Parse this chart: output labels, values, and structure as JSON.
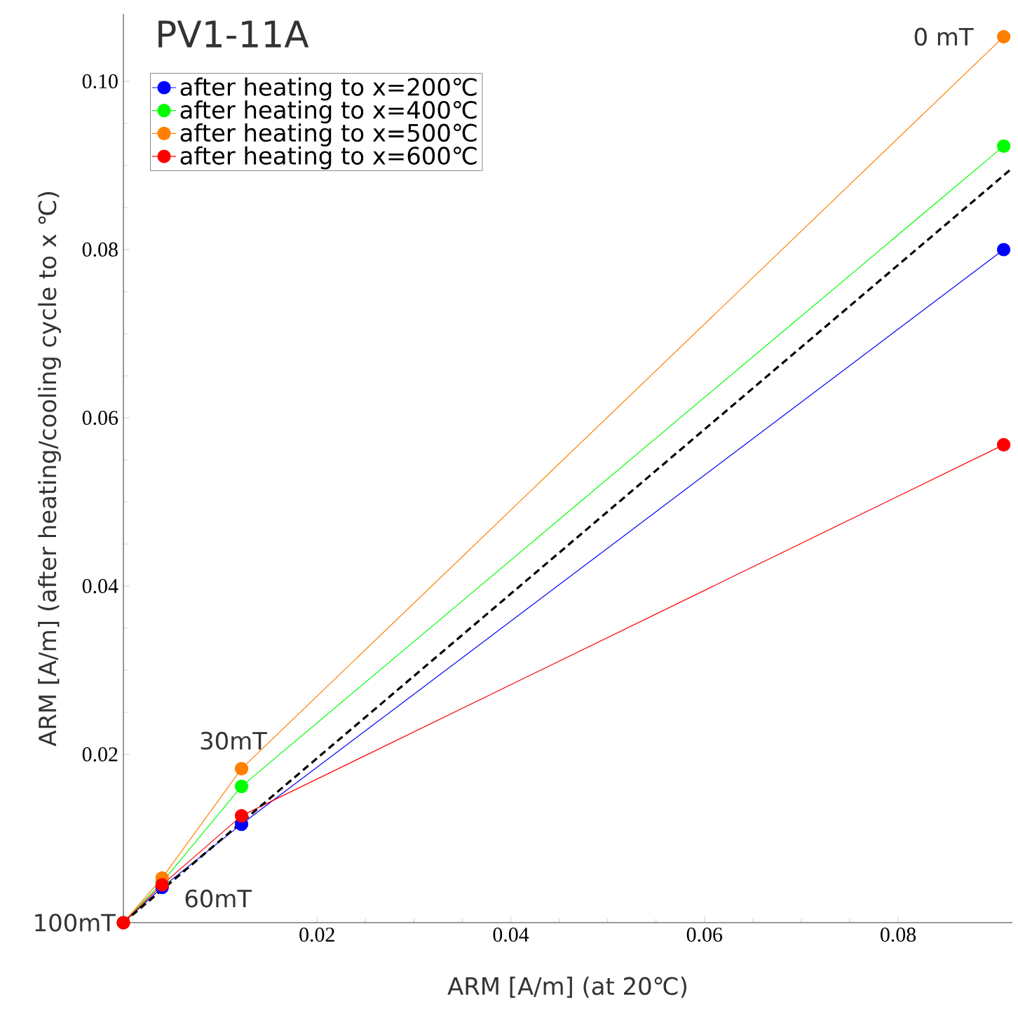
{
  "chart_data": {
    "type": "line",
    "title": "PV1-11A",
    "xlabel": "ARM [A/m] (at 20℃)",
    "ylabel": "ARM [A/m] (after heating/cooling cycle to x ℃)",
    "x": [
      0,
      0.004,
      0.0122,
      0.0909
    ],
    "series": [
      {
        "name": "after heating to x=200℃",
        "color": "#0000ff",
        "values": [
          0,
          0.0042,
          0.0117,
          0.08
        ]
      },
      {
        "name": "after heating to x=400℃",
        "color": "#00ff00",
        "values": [
          0,
          0.0048,
          0.0162,
          0.0923
        ]
      },
      {
        "name": "after heating to x=500℃",
        "color": "#ff8000",
        "values": [
          0,
          0.0053,
          0.0183,
          0.1053
        ]
      },
      {
        "name": "after heating to x=600℃",
        "color": "#ff0000",
        "values": [
          0,
          0.0045,
          0.0127,
          0.0568
        ]
      },
      {
        "color": "#000000",
        "x": [
          0,
          0.0918
        ],
        "values": [
          0,
          0.0897
        ],
        "line_style": "dashed",
        "marker": "none"
      }
    ],
    "xlim": [
      0,
      0.0918
    ],
    "ylim": [
      0,
      0.108
    ],
    "xticks": [
      0.02,
      0.04,
      0.06,
      0.08
    ],
    "yticks": [
      0.02,
      0.04,
      0.06,
      0.08,
      {
        "value": 0.1,
        "label": "0.10"
      }
    ],
    "annotations": [
      {
        "text": "100mT",
        "x": 0,
        "y": 0
      },
      {
        "text": "60mT",
        "x": 0.004,
        "y": 0.0042
      },
      {
        "text": "30mT",
        "x": 0.0122,
        "y": 0.0183
      },
      {
        "text": "0 mT",
        "x": 0.0909,
        "y": 0.1053
      }
    ],
    "marker": "circle",
    "line_style": "solid",
    "grid": false,
    "legend": "top left"
  }
}
